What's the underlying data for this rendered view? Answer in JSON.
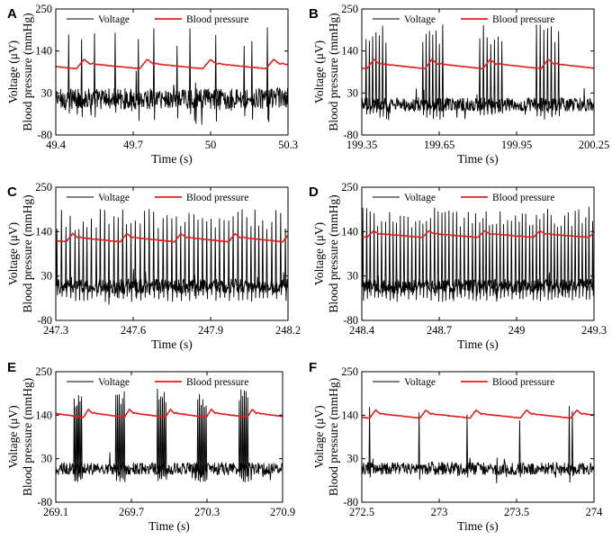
{
  "figure": {
    "description_free": true
  },
  "colors": {
    "voltage": "#000000",
    "pressure": "#e02020"
  },
  "chart_data": [
    {
      "panel": "A",
      "type": "line",
      "xlabel": "Time (s)",
      "ylabel_top": "Voltage (μV)",
      "ylabel_bottom": "Blood pressure (mmHg)",
      "xlim": [
        49.4,
        50.3
      ],
      "ylim": [
        -80,
        250
      ],
      "xticks": [
        49.4,
        49.7,
        50,
        50.3
      ],
      "xtick_labels": [
        "49.4",
        "49.7",
        "50",
        "50.3"
      ],
      "yticks": [
        -80,
        30,
        140,
        250
      ],
      "ytick_labels": [
        "-80",
        "30",
        "140",
        "250"
      ],
      "legend": [
        "Voltage",
        "Blood pressure"
      ],
      "series": [
        {
          "name": "Voltage",
          "baseline": 15,
          "noise": 28,
          "spikes": [
            49.45,
            49.5,
            49.55,
            49.63,
            49.72,
            49.78,
            49.87,
            49.92,
            50.02,
            50.13,
            50.16,
            50.22
          ],
          "spike_peak": 180
        },
        {
          "name": "Blood pressure",
          "base": 100,
          "period": 0.245,
          "phase": 49.48,
          "amp": 18
        }
      ]
    },
    {
      "panel": "B",
      "type": "line",
      "xlabel": "Time (s)",
      "ylabel_top": "Voltage (μV)",
      "ylabel_bottom": "Blood pressure (mmHg)",
      "xlim": [
        199.35,
        200.25
      ],
      "ylim": [
        -80,
        250
      ],
      "xticks": [
        199.35,
        199.65,
        199.95,
        200.25
      ],
      "xtick_labels": [
        "199.35",
        "199.65",
        "199.95",
        "200.25"
      ],
      "yticks": [
        -80,
        30,
        140,
        250
      ],
      "ytick_labels": [
        "-80",
        "30",
        "140",
        "250"
      ],
      "legend": [
        "Voltage",
        "Blood pressure"
      ],
      "series": [
        {
          "name": "Voltage",
          "baseline": 0,
          "noise": 18,
          "bursts": [
            [
              199.36,
              199.45,
              7
            ],
            [
              199.58,
              199.67,
              7
            ],
            [
              199.8,
              199.9,
              7
            ],
            [
              200.02,
              200.12,
              7
            ]
          ],
          "spike_peak": 190
        },
        {
          "name": "Blood pressure",
          "base": 100,
          "period": 0.225,
          "phase": 199.37,
          "amp": 18
        }
      ]
    },
    {
      "panel": "C",
      "type": "line",
      "xlabel": "Time (s)",
      "ylabel_top": "Voltage (μV)",
      "ylabel_bottom": "Blood pressure (mmHg)",
      "xlim": [
        247.3,
        248.2
      ],
      "ylim": [
        -80,
        250
      ],
      "xticks": [
        247.3,
        247.6,
        247.9,
        248.2
      ],
      "xtick_labels": [
        "247.3",
        "247.6",
        "247.9",
        "248.2"
      ],
      "yticks": [
        -80,
        30,
        140,
        250
      ],
      "ytick_labels": [
        "-80",
        "30",
        "140",
        "250"
      ],
      "legend": [
        "Voltage",
        "Blood pressure"
      ],
      "series": [
        {
          "name": "Voltage",
          "baseline": 5,
          "noise": 18,
          "regular_spike_interval": 0.017,
          "spike_peak": 175
        },
        {
          "name": "Blood pressure",
          "base": 120,
          "period": 0.21,
          "phase": 247.34,
          "amp": 15
        }
      ]
    },
    {
      "panel": "D",
      "type": "line",
      "xlabel": "Time (s)",
      "ylabel_top": "Voltage (μV)",
      "ylabel_bottom": "Blood pressure (mmHg)",
      "xlim": [
        248.4,
        249.3
      ],
      "ylim": [
        -80,
        250
      ],
      "xticks": [
        248.4,
        248.7,
        249,
        249.3
      ],
      "xtick_labels": [
        "248.4",
        "248.7",
        "249",
        "249.3"
      ],
      "yticks": [
        -80,
        30,
        140,
        250
      ],
      "ytick_labels": [
        "-80",
        "30",
        "140",
        "250"
      ],
      "legend": [
        "Voltage",
        "Blood pressure"
      ],
      "series": [
        {
          "name": "Voltage",
          "baseline": 5,
          "noise": 18,
          "regular_spike_interval": 0.014,
          "spike_peak": 180
        },
        {
          "name": "Blood pressure",
          "base": 130,
          "period": 0.215,
          "phase": 248.42,
          "amp": 12
        }
      ]
    },
    {
      "panel": "E",
      "type": "line",
      "xlabel": "Time (s)",
      "ylabel_top": "Voltage (μV)",
      "ylabel_bottom": "Blood pressure (mmHg)",
      "xlim": [
        269.1,
        270.9
      ],
      "ylim": [
        -80,
        250
      ],
      "xticks": [
        269.1,
        269.7,
        270.3,
        270.9
      ],
      "xtick_labels": [
        "269.1",
        "269.7",
        "270.3",
        "270.9"
      ],
      "yticks": [
        -80,
        30,
        140,
        250
      ],
      "ytick_labels": [
        "-80",
        "30",
        "140",
        "250"
      ],
      "legend": [
        "Voltage",
        "Blood pressure"
      ],
      "series": [
        {
          "name": "Voltage",
          "baseline": 5,
          "noise": 16,
          "bursts": [
            [
              269.24,
              269.31,
              6
            ],
            [
              269.57,
              269.65,
              6
            ],
            [
              269.9,
              269.98,
              6
            ],
            [
              270.22,
              270.3,
              6
            ],
            [
              270.55,
              270.63,
              6
            ]
          ],
          "spike_peak": 185
        },
        {
          "name": "Blood pressure",
          "base": 140,
          "period": 0.325,
          "phase": 269.32,
          "amp": 15
        }
      ]
    },
    {
      "panel": "F",
      "type": "line",
      "xlabel": "Time (s)",
      "ylabel_top": "Voltage (μV)",
      "ylabel_bottom": "Blood pressure (mmHg)",
      "xlim": [
        272.5,
        274
      ],
      "ylim": [
        -80,
        250
      ],
      "xticks": [
        272.5,
        273,
        273.5,
        274
      ],
      "xtick_labels": [
        "272.5",
        "273",
        "273.5",
        "274"
      ],
      "yticks": [
        -80,
        30,
        140,
        250
      ],
      "ytick_labels": [
        "-80",
        "30",
        "140",
        "250"
      ],
      "legend": [
        "Voltage",
        "Blood pressure"
      ],
      "series": [
        {
          "name": "Voltage",
          "baseline": 5,
          "noise": 16,
          "spikes": [
            272.55,
            272.87,
            273.18,
            273.52,
            273.84,
            273.86
          ],
          "spike_peak": 150
        },
        {
          "name": "Blood pressure",
          "base": 138,
          "period": 0.325,
          "phase": 272.55,
          "amp": 15
        }
      ]
    }
  ]
}
